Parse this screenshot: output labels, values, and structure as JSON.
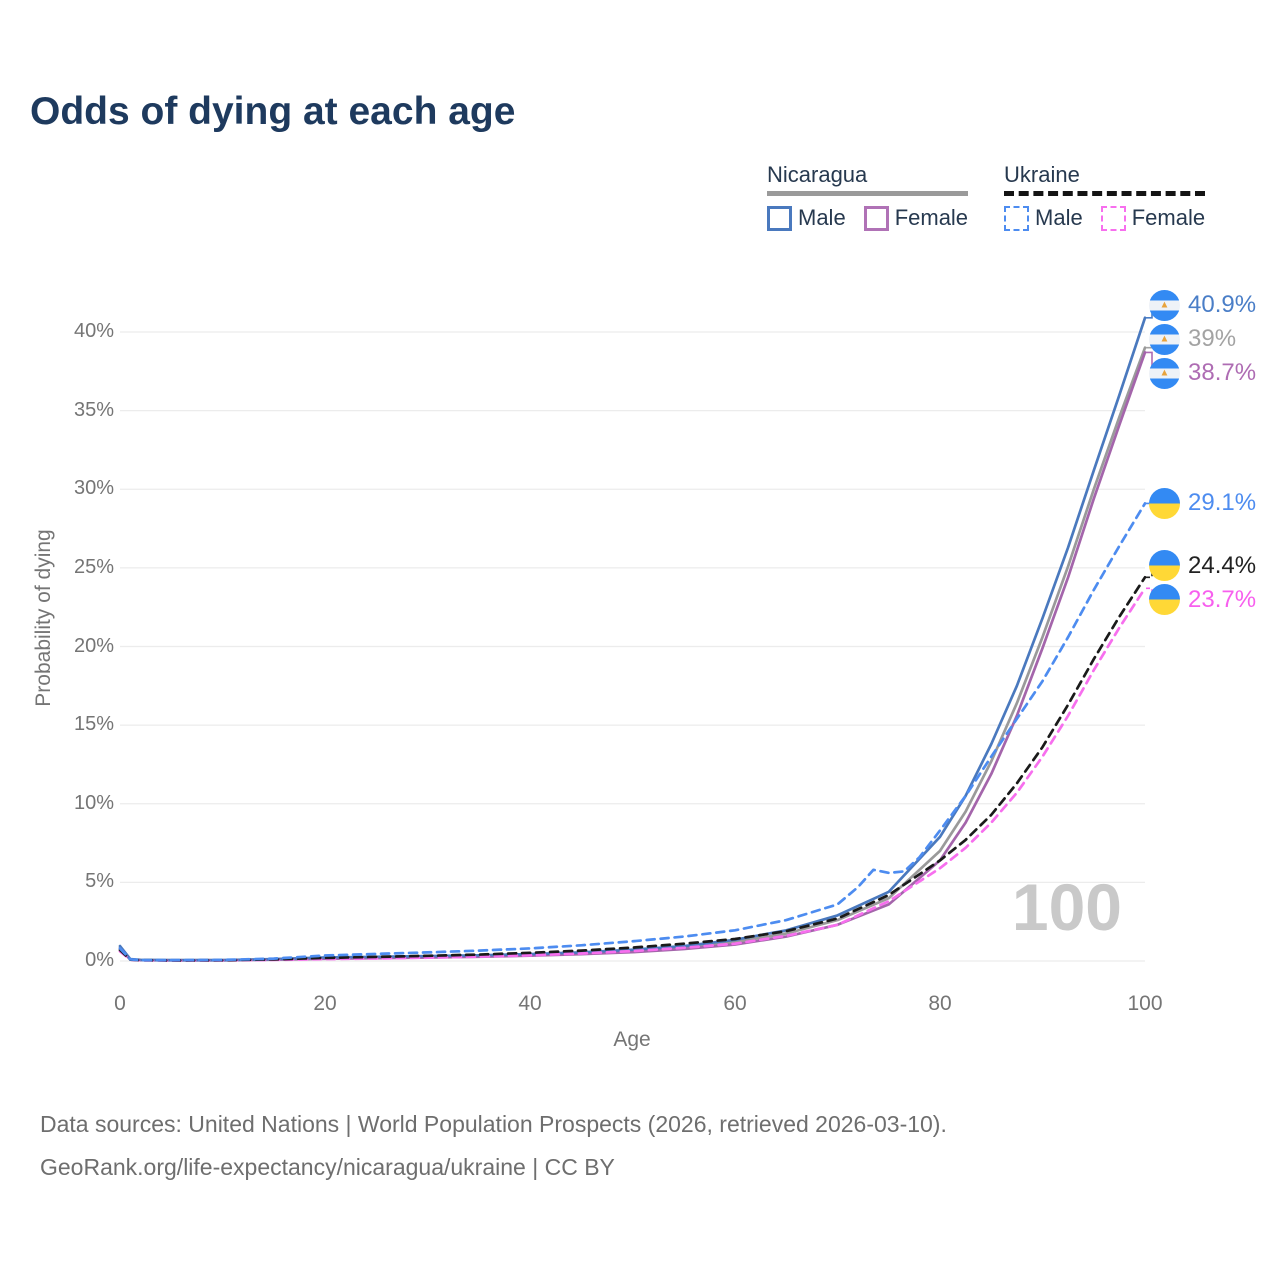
{
  "page": {
    "title": "Odds of dying at each age"
  },
  "legend": {
    "groups": [
      {
        "name": "Nicaragua",
        "rule_color": "#9a9a9a",
        "rule_dashed": false,
        "items": [
          {
            "label": "Male",
            "color": "#4a79be",
            "dash": false
          },
          {
            "label": "Female",
            "color": "#b072b6",
            "dash": false
          }
        ]
      },
      {
        "name": "Ukraine",
        "rule_color": "#141414",
        "rule_dashed": true,
        "items": [
          {
            "label": "Male",
            "color": "#4d8cf0",
            "dash": true
          },
          {
            "label": "Female",
            "color": "#f76fee",
            "dash": true
          }
        ]
      }
    ]
  },
  "axis": {
    "x_label": "Age",
    "y_label": "Probability of dying"
  },
  "watermark": "100",
  "end_labels": [
    {
      "text": "40.9%",
      "value": 40.9,
      "color": "#4a7ec7",
      "flag": "nicaragua",
      "dash": false
    },
    {
      "text": "39%",
      "value": 39.0,
      "color": "#a3a3a3",
      "flag": "nicaragua",
      "dash": false
    },
    {
      "text": "38.7%",
      "value": 38.7,
      "color": "#ae6cb3",
      "flag": "nicaragua",
      "dash": false
    },
    {
      "text": "29.1%",
      "value": 29.1,
      "color": "#4d8cf0",
      "flag": "ukraine",
      "dash": true
    },
    {
      "text": "24.4%",
      "value": 24.4,
      "color": "#222222",
      "flag": "ukraine",
      "dash": true
    },
    {
      "text": "23.7%",
      "value": 23.7,
      "color": "#f75fee",
      "flag": "ukraine",
      "dash": true
    }
  ],
  "footer": {
    "line1": "Data sources: United Nations | World Population Prospects (2026, retrieved 2026-03-10).",
    "line2": "GeoRank.org/life-expectancy/nicaragua/ukraine | CC BY"
  },
  "chart_data": {
    "type": "line",
    "title": "Odds of dying at each age",
    "xlabel": "Age",
    "ylabel": "Probability of dying",
    "xlim": [
      0,
      100
    ],
    "ylim": [
      0,
      42
    ],
    "grid": true,
    "legend_position": "top-right",
    "xticks": [
      {
        "v": 0,
        "label": "0"
      },
      {
        "v": 20,
        "label": "20"
      },
      {
        "v": 40,
        "label": "40"
      },
      {
        "v": 60,
        "label": "60"
      },
      {
        "v": 80,
        "label": "80"
      },
      {
        "v": 100,
        "label": "100"
      }
    ],
    "yticks": [
      {
        "v": 0,
        "label": "0%"
      },
      {
        "v": 5,
        "label": "5%"
      },
      {
        "v": 10,
        "label": "10%"
      },
      {
        "v": 15,
        "label": "15%"
      },
      {
        "v": 20,
        "label": "20%"
      },
      {
        "v": 25,
        "label": "25%"
      },
      {
        "v": 30,
        "label": "30%"
      },
      {
        "v": 35,
        "label": "35%"
      },
      {
        "v": 40,
        "label": "40%"
      }
    ],
    "unit": "percent",
    "series": [
      {
        "name": "Nicaragua (both sexes)",
        "country": "Nicaragua",
        "sex": "both",
        "color": "#9a9a9a",
        "dash": false,
        "x": [
          0,
          1,
          2,
          5,
          10,
          15,
          20,
          25,
          30,
          35,
          40,
          45,
          50,
          55,
          60,
          65,
          70,
          75,
          80,
          82.5,
          85,
          87.5,
          90,
          92.5,
          95,
          97.5,
          100
        ],
        "y": [
          0.85,
          0.1,
          0.06,
          0.05,
          0.05,
          0.1,
          0.18,
          0.23,
          0.27,
          0.32,
          0.39,
          0.49,
          0.64,
          0.85,
          1.2,
          1.75,
          2.6,
          4.0,
          7.0,
          9.5,
          12.7,
          16.4,
          20.6,
          25.1,
          30.0,
          34.6,
          39.0
        ]
      },
      {
        "name": "Nicaragua Female",
        "country": "Nicaragua",
        "sex": "female",
        "color": "#a465ab",
        "dash": false,
        "x": [
          0,
          1,
          2,
          5,
          10,
          15,
          20,
          25,
          30,
          35,
          40,
          45,
          50,
          55,
          60,
          65,
          70,
          75,
          80,
          82.5,
          85,
          87.5,
          90,
          92.5,
          95,
          97.5,
          100
        ],
        "y": [
          0.78,
          0.09,
          0.05,
          0.04,
          0.04,
          0.08,
          0.14,
          0.18,
          0.22,
          0.27,
          0.34,
          0.43,
          0.56,
          0.76,
          1.05,
          1.55,
          2.3,
          3.6,
          6.4,
          8.8,
          11.9,
          15.6,
          19.9,
          24.4,
          29.4,
          34.1,
          38.7
        ]
      },
      {
        "name": "Nicaragua Male",
        "country": "Nicaragua",
        "sex": "male",
        "color": "#4a79be",
        "dash": false,
        "x": [
          0,
          1,
          2,
          5,
          10,
          15,
          20,
          25,
          30,
          35,
          40,
          45,
          50,
          55,
          60,
          65,
          70,
          75,
          80,
          82.5,
          85,
          87.5,
          90,
          92.5,
          95,
          97.5,
          100
        ],
        "y": [
          0.95,
          0.12,
          0.07,
          0.06,
          0.06,
          0.12,
          0.22,
          0.27,
          0.31,
          0.36,
          0.44,
          0.55,
          0.72,
          0.95,
          1.35,
          1.95,
          2.9,
          4.4,
          7.9,
          10.5,
          13.8,
          17.5,
          21.8,
          26.3,
          31.2,
          36.0,
          40.9
        ]
      },
      {
        "name": "Ukraine Female",
        "country": "Ukraine",
        "sex": "female",
        "color": "#f76fee",
        "dash": true,
        "x": [
          0,
          1,
          2,
          5,
          10,
          15,
          20,
          25,
          30,
          35,
          40,
          45,
          50,
          55,
          60,
          65,
          70,
          75,
          80,
          82.5,
          85,
          87.5,
          90,
          92.5,
          95,
          97.5,
          100
        ],
        "y": [
          0.62,
          0.08,
          0.04,
          0.03,
          0.04,
          0.07,
          0.12,
          0.16,
          0.21,
          0.28,
          0.36,
          0.48,
          0.63,
          0.84,
          1.1,
          1.6,
          2.3,
          3.8,
          5.9,
          7.2,
          8.8,
          10.7,
          13.0,
          15.6,
          18.5,
          21.2,
          23.7
        ]
      },
      {
        "name": "Ukraine (both sexes)",
        "country": "Ukraine",
        "sex": "both",
        "color": "#1a1a1a",
        "dash": true,
        "x": [
          0,
          1,
          2,
          5,
          10,
          15,
          20,
          25,
          30,
          35,
          40,
          45,
          50,
          55,
          60,
          65,
          70,
          75,
          80,
          82.5,
          85,
          87.5,
          90,
          92.5,
          95,
          97.5,
          100
        ],
        "y": [
          0.7,
          0.09,
          0.05,
          0.04,
          0.05,
          0.1,
          0.2,
          0.26,
          0.33,
          0.41,
          0.52,
          0.66,
          0.85,
          1.1,
          1.4,
          1.9,
          2.7,
          4.2,
          6.4,
          7.7,
          9.3,
          11.3,
          13.6,
          16.3,
          19.2,
          21.9,
          24.4
        ]
      },
      {
        "name": "Ukraine Male",
        "country": "Ukraine",
        "sex": "male",
        "color": "#4d8cf0",
        "dash": true,
        "x": [
          0,
          1,
          2,
          5,
          10,
          15,
          20,
          25,
          30,
          35,
          40,
          45,
          50,
          55,
          60,
          65,
          70,
          72,
          73.5,
          75,
          76.5,
          78,
          80,
          82.5,
          85,
          87.5,
          90,
          92.5,
          95,
          97.5,
          100
        ],
        "y": [
          0.8,
          0.1,
          0.06,
          0.06,
          0.07,
          0.15,
          0.35,
          0.45,
          0.55,
          0.66,
          0.8,
          1.0,
          1.25,
          1.55,
          1.95,
          2.6,
          3.6,
          4.7,
          5.8,
          5.6,
          5.7,
          6.6,
          8.3,
          10.5,
          13.0,
          15.4,
          17.8,
          20.6,
          23.6,
          26.4,
          29.1
        ]
      }
    ]
  }
}
